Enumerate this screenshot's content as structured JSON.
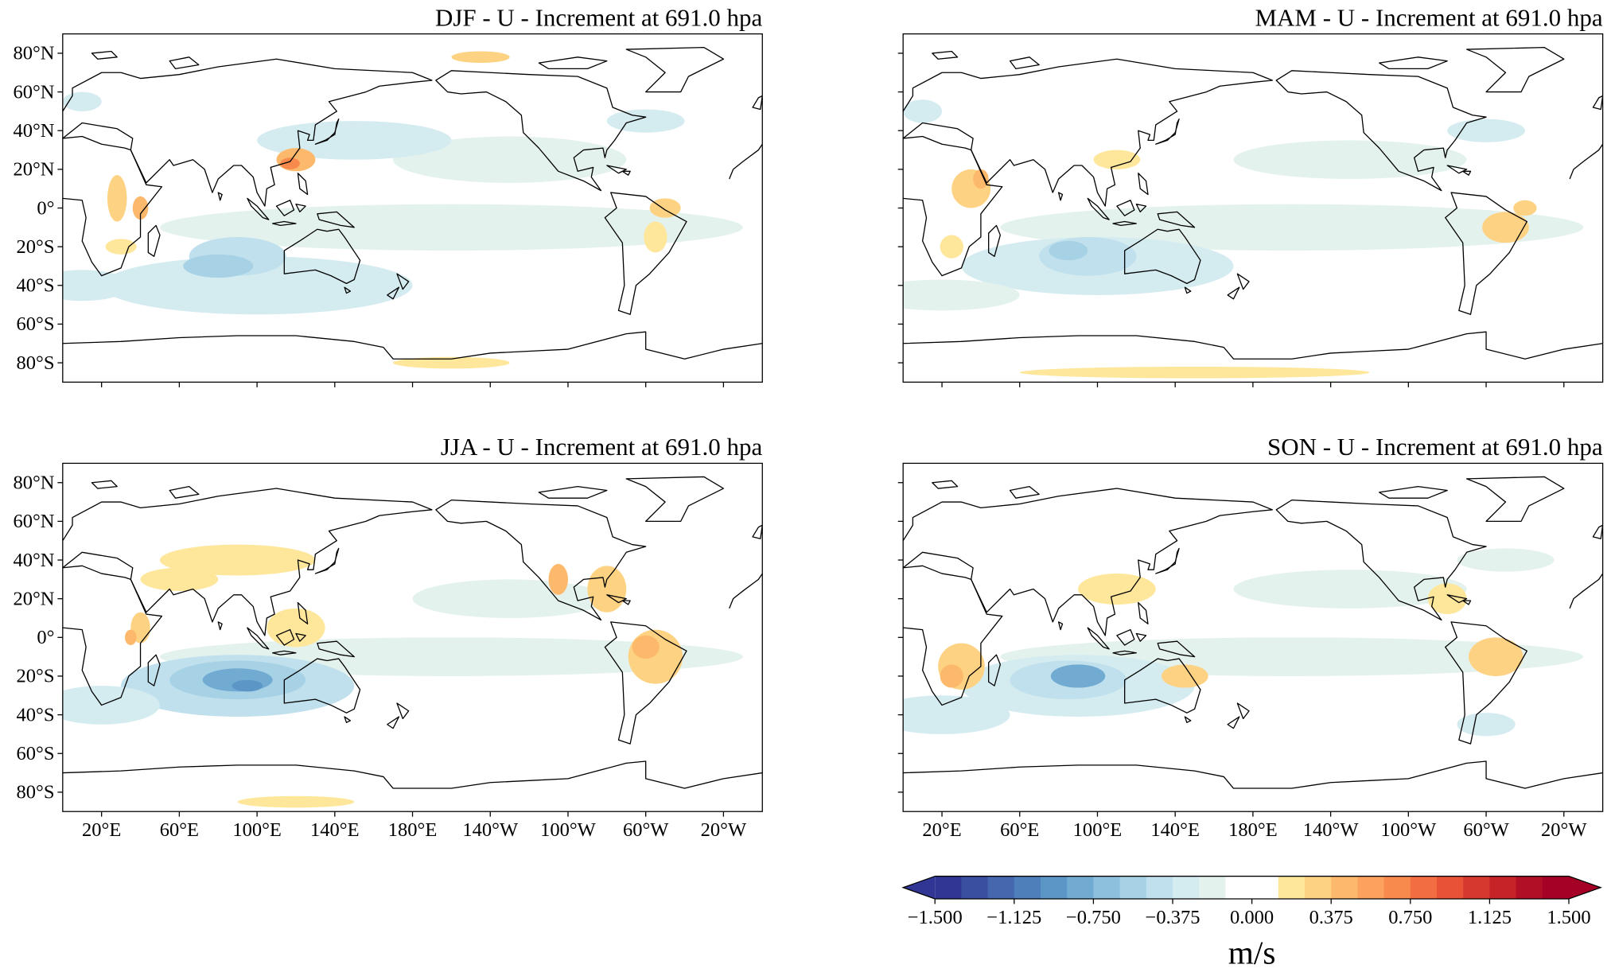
{
  "panels": [
    {
      "title": "DJF - U - Increment at 691.0 hpa"
    },
    {
      "title": "MAM - U - Increment at 691.0 hpa"
    },
    {
      "title": "JJA - U - Increment at 691.0 hpa"
    },
    {
      "title": "SON - U - Increment at 691.0 hpa"
    }
  ],
  "xlim": [
    0,
    360
  ],
  "ylim": [
    -90,
    90
  ],
  "lat_ticks": [
    {
      "value": 80,
      "label": "80°N"
    },
    {
      "value": 60,
      "label": "60°N"
    },
    {
      "value": 40,
      "label": "40°N"
    },
    {
      "value": 20,
      "label": "20°N"
    },
    {
      "value": 0,
      "label": "0°"
    },
    {
      "value": -20,
      "label": "20°S"
    },
    {
      "value": -40,
      "label": "40°S"
    },
    {
      "value": -60,
      "label": "60°S"
    },
    {
      "value": -80,
      "label": "80°S"
    }
  ],
  "lon_ticks": [
    {
      "value": 20,
      "label": "20°E"
    },
    {
      "value": 60,
      "label": "60°E"
    },
    {
      "value": 100,
      "label": "100°E"
    },
    {
      "value": 140,
      "label": "140°E"
    },
    {
      "value": 180,
      "label": "180°E"
    },
    {
      "value": -140,
      "label": "140°W"
    },
    {
      "value": -100,
      "label": "100°W"
    },
    {
      "value": -60,
      "label": "60°W"
    },
    {
      "value": -20,
      "label": "20°W"
    }
  ],
  "colorbar": {
    "label": "m/s",
    "lim": [
      -1.5,
      1.5
    ],
    "ticks": [
      {
        "value": -1.5,
        "label": "−1.500"
      },
      {
        "value": -1.125,
        "label": "−1.125"
      },
      {
        "value": -0.75,
        "label": "−0.750"
      },
      {
        "value": -0.375,
        "label": "−0.375"
      },
      {
        "value": 0,
        "label": "0.000"
      },
      {
        "value": 0.375,
        "label": "0.375"
      },
      {
        "value": 0.75,
        "label": "0.750"
      },
      {
        "value": 1.125,
        "label": "1.125"
      },
      {
        "value": 1.5,
        "label": "1.500"
      }
    ],
    "colors": [
      "#313695",
      "#3a4fa0",
      "#4467ae",
      "#4e7fbb",
      "#5b96c7",
      "#72abd2",
      "#8cc0dd",
      "#a7d2e6",
      "#bfe0ec",
      "#d4ebf0",
      "#e4f2ee",
      "#ffffff",
      "#ffffff",
      "#fee79b",
      "#fed283",
      "#fdb96b",
      "#fca25d",
      "#f98a4e",
      "#f26d42",
      "#e85237",
      "#d7382e",
      "#c62328",
      "#b10f26",
      "#a50026"
    ],
    "under": "#313695",
    "over": "#a50026"
  }
}
